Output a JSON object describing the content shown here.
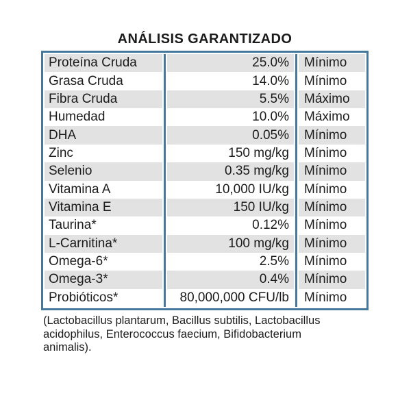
{
  "title": "ANÁLISIS GARANTIZADO",
  "colors": {
    "table_border": "#45789a",
    "row_stripe": "#e2e2e2",
    "text": "#1b1b1b"
  },
  "table": {
    "columns": [
      "nutrient",
      "value",
      "qualifier"
    ],
    "rows": [
      {
        "label": "Proteína Cruda",
        "value": "25.0%",
        "qualifier": "Mínimo"
      },
      {
        "label": "Grasa Cruda",
        "value": "14.0%",
        "qualifier": "Mínimo"
      },
      {
        "label": "Fibra Cruda",
        "value": "5.5%",
        "qualifier": "Máximo"
      },
      {
        "label": "Humedad",
        "value": "10.0%",
        "qualifier": "Máximo"
      },
      {
        "label": "DHA",
        "value": "0.05%",
        "qualifier": "Mínimo"
      },
      {
        "label": "Zinc",
        "value": "150 mg/kg",
        "qualifier": "Mínimo"
      },
      {
        "label": "Selenio",
        "value": "0.35 mg/kg",
        "qualifier": "Mínimo"
      },
      {
        "label": "Vitamina A",
        "value": "10,000 IU/kg",
        "qualifier": "Mínimo"
      },
      {
        "label": "Vitamina E",
        "value": "150 IU/kg",
        "qualifier": "Mínimo"
      },
      {
        "label": "Taurina*",
        "value": "0.12%",
        "qualifier": "Mínimo"
      },
      {
        "label": "L-Carnitina*",
        "value": "100 mg/kg",
        "qualifier": "Mínimo"
      },
      {
        "label": "Omega-6*",
        "value": "2.5%",
        "qualifier": "Mínimo"
      },
      {
        "label": "Omega-3*",
        "value": "0.4%",
        "qualifier": "Mínimo"
      },
      {
        "label": "Probióticos*",
        "value": "80,000,000 CFU/lb",
        "qualifier": "Mínimo"
      }
    ]
  },
  "footnote": {
    "lines": [
      "(Lactobacillus plantarum, Bacillus subtilis, Lactobacillus",
      "acidophilus, Enterococcus faecium, Bifidobacterium",
      "animalis)."
    ]
  }
}
